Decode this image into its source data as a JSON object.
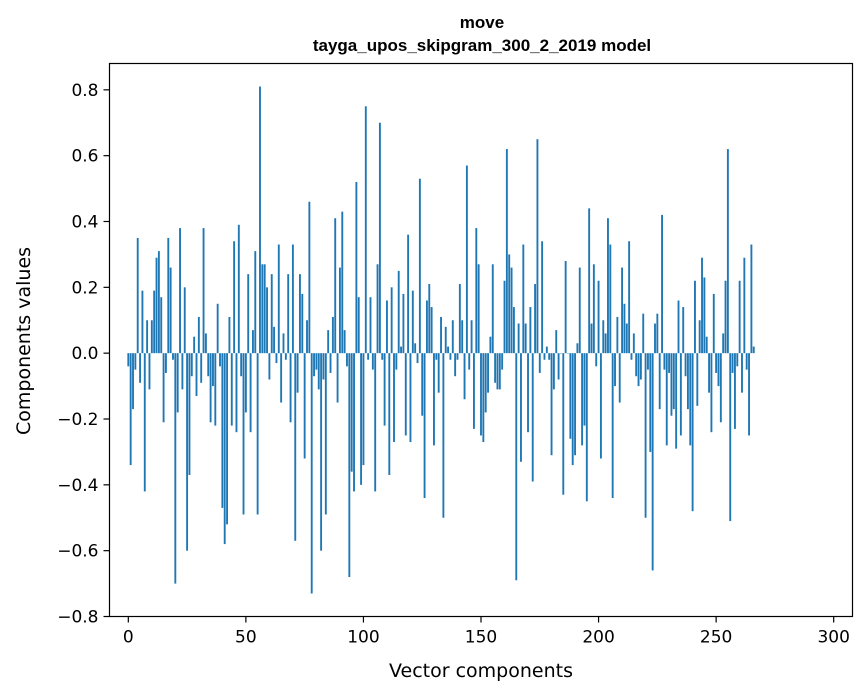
{
  "chart_data": {
    "type": "bar",
    "title": "move",
    "subtitle": "tayga_upos_skipgram_300_2_2019 model",
    "xlabel": "Vector components",
    "ylabel": "Components values",
    "xlim": [
      -8,
      308
    ],
    "ylim": [
      -0.8,
      0.88
    ],
    "xticks": [
      0,
      50,
      100,
      150,
      200,
      250,
      300
    ],
    "yticks": [
      -0.8,
      -0.6,
      -0.4,
      -0.2,
      0.0,
      0.2,
      0.4,
      0.6,
      0.8
    ],
    "ytick_labels": [
      "−0.8",
      "−0.6",
      "−0.4",
      "−0.2",
      "0.0",
      "0.2",
      "0.4",
      "0.6",
      "0.8"
    ],
    "xtick_labels": [
      "0",
      "50",
      "100",
      "150",
      "200",
      "250",
      "300"
    ],
    "bar_color": "#1f77b4",
    "grid": false,
    "values": [
      -0.04,
      -0.34,
      -0.17,
      -0.05,
      0.35,
      -0.09,
      0.19,
      -0.42,
      0.1,
      -0.11,
      0.1,
      0.19,
      0.29,
      0.31,
      0.17,
      -0.21,
      -0.06,
      0.35,
      0.26,
      -0.02,
      -0.7,
      -0.18,
      0.38,
      -0.11,
      0.2,
      -0.6,
      -0.37,
      -0.07,
      0.05,
      -0.13,
      0.11,
      -0.09,
      0.38,
      0.06,
      -0.07,
      -0.21,
      -0.1,
      -0.22,
      0.15,
      -0.04,
      -0.47,
      -0.58,
      -0.52,
      0.11,
      -0.22,
      0.34,
      -0.24,
      0.39,
      -0.07,
      -0.49,
      -0.18,
      0.24,
      -0.24,
      0.07,
      0.31,
      -0.49,
      0.81,
      0.27,
      0.27,
      0.2,
      -0.08,
      0.24,
      0.08,
      -0.03,
      0.33,
      -0.15,
      0.06,
      -0.02,
      0.24,
      -0.21,
      0.33,
      -0.57,
      -0.12,
      0.24,
      0.18,
      -0.32,
      0.1,
      0.46,
      -0.73,
      -0.07,
      -0.05,
      -0.11,
      -0.6,
      -0.08,
      -0.49,
      0.07,
      -0.06,
      0.11,
      0.41,
      -0.15,
      0.26,
      0.43,
      0.07,
      -0.04,
      -0.68,
      -0.36,
      -0.42,
      0.52,
      0.17,
      -0.4,
      -0.34,
      0.75,
      -0.02,
      0.17,
      -0.05,
      -0.42,
      0.27,
      0.7,
      -0.02,
      -0.22,
      0.16,
      -0.37,
      0.2,
      -0.27,
      -0.05,
      0.25,
      0.02,
      0.18,
      -0.25,
      0.36,
      -0.27,
      0.19,
      0.03,
      -0.03,
      0.53,
      -0.19,
      -0.44,
      0.16,
      0.21,
      0.14,
      -0.28,
      -0.02,
      -0.12,
      0.11,
      -0.5,
      0.08,
      0.02,
      -0.02,
      0.1,
      -0.07,
      -0.02,
      0.21,
      0.1,
      -0.14,
      0.57,
      -0.05,
      0.1,
      -0.23,
      0.38,
      0.27,
      -0.25,
      -0.27,
      -0.18,
      -0.12,
      0.05,
      0.27,
      -0.09,
      -0.11,
      -0.11,
      -0.05,
      0.22,
      0.62,
      0.3,
      0.26,
      0.14,
      -0.69,
      0.09,
      -0.33,
      0.33,
      0.09,
      -0.24,
      0.14,
      -0.39,
      0.21,
      0.65,
      -0.06,
      0.34,
      -0.02,
      0.02,
      -0.02,
      -0.31,
      -0.11,
      0.07,
      -0.08,
      0.0,
      -0.43,
      0.28,
      0.0,
      -0.26,
      -0.34,
      -0.31,
      0.03,
      0.26,
      -0.28,
      -0.22,
      -0.45,
      0.44,
      0.09,
      0.27,
      -0.04,
      0.22,
      -0.32,
      0.1,
      0.06,
      0.41,
      0.33,
      -0.44,
      -0.1,
      0.11,
      -0.15,
      0.26,
      0.15,
      0.09,
      0.34,
      -0.02,
      0.06,
      -0.07,
      -0.1,
      -0.08,
      0.12,
      -0.5,
      -0.05,
      -0.3,
      -0.66,
      0.09,
      0.12,
      -0.17,
      0.42,
      -0.05,
      -0.28,
      -0.06,
      -0.19,
      -0.17,
      -0.29,
      0.16,
      -0.25,
      0.14,
      -0.07,
      -0.17,
      -0.28,
      -0.48,
      0.22,
      -0.16,
      0.1,
      0.29,
      0.23,
      0.05,
      -0.12,
      -0.24,
      0.18,
      -0.06,
      -0.1,
      -0.21,
      0.06,
      0.22,
      0.62,
      -0.51,
      -0.06,
      -0.23,
      -0.04,
      0.22,
      -0.12,
      0.29,
      -0.05,
      -0.25,
      0.33,
      0.02
    ]
  }
}
